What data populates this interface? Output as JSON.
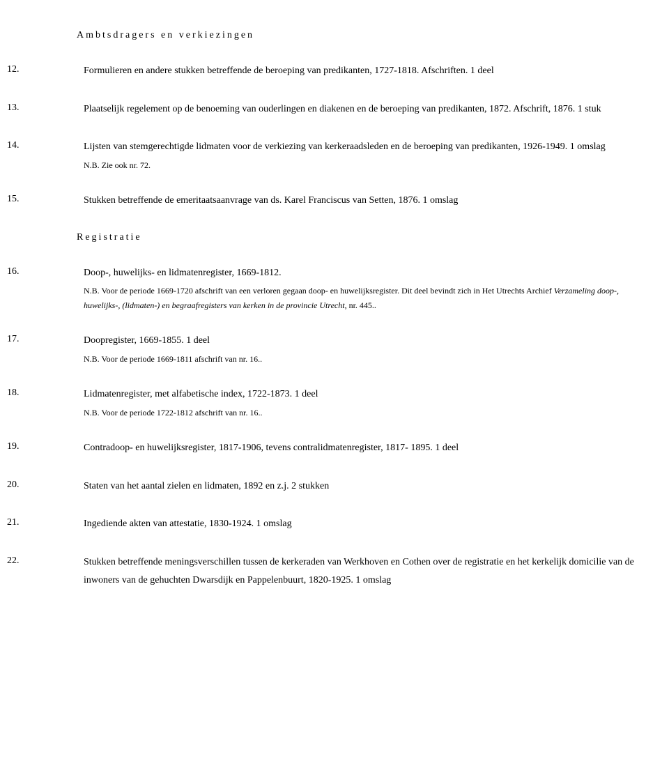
{
  "sections": [
    {
      "heading": "Ambtsdragers en verkiezingen",
      "entries": [
        {
          "num": "12.",
          "text": "Formulieren en andere stukken betreffende de beroeping van predikanten, 1727-1818. Afschriften. 1 deel"
        },
        {
          "num": "13.",
          "text": "Plaatselijk regelement op de benoeming van ouderlingen en diakenen en de beroeping van predikanten, 1872. Afschrift, 1876. 1 stuk"
        },
        {
          "num": "14.",
          "text": "Lijsten van stemgerechtigde lidmaten voor de verkiezing van kerkeraadsleden en de beroeping van predikanten, 1926-1949. 1 omslag",
          "note": "N.B. Zie ook nr. 72."
        },
        {
          "num": "15.",
          "text": "Stukken betreffende de emeritaatsaanvrage van ds. Karel Franciscus van Setten, 1876. 1 omslag"
        }
      ]
    },
    {
      "heading": "Registratie",
      "entries": [
        {
          "num": "16.",
          "text": "Doop-, huwelijks- en lidmatenregister, 1669-1812.",
          "note_parts": [
            {
              "text": "N.B. Voor de periode 1669-1720 afschrift van een verloren gegaan doop- en huwelijksregister. Dit deel bevindt zich in Het Utrechts Archief "
            },
            {
              "text": "Verzameling doop-, huwelijks-, (lidmaten-) en begraafregisters van kerken in de provincie Utrecht",
              "italic": true
            },
            {
              "text": ", nr. 445.."
            }
          ]
        },
        {
          "num": "17.",
          "text": "Doopregister, 1669-1855. 1 deel",
          "note": "N.B. Voor de periode 1669-1811 afschrift van nr. 16.."
        },
        {
          "num": "18.",
          "text": "Lidmatenregister, met alfabetische index, 1722-1873. 1 deel",
          "note": "N.B. Voor de periode 1722-1812 afschrift van nr. 16.."
        },
        {
          "num": "19.",
          "text": "Contradoop- en huwelijksregister, 1817-1906, tevens contralidmatenregister, 1817- 1895. 1 deel"
        },
        {
          "num": "20.",
          "text": "Staten van het aantal zielen en lidmaten, 1892 en z.j. 2 stukken"
        },
        {
          "num": "21.",
          "text": "Ingediende akten van attestatie, 1830-1924. 1 omslag"
        },
        {
          "num": "22.",
          "text": "Stukken betreffende meningsverschillen tussen de kerkeraden van Werkhoven en Cothen over de registratie en het kerkelijk domicilie van de inwoners van de gehuchten Dwarsdijk en Pappelenbuurt, 1820-1925. 1 omslag"
        }
      ]
    }
  ]
}
